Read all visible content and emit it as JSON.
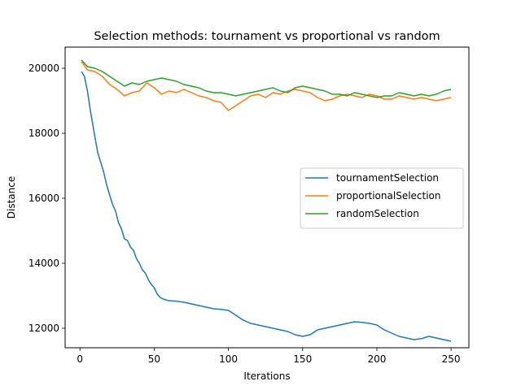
{
  "chart_data": {
    "type": "line",
    "title": "Selection methods: tournament vs proportional vs random",
    "xlabel": "Iterations",
    "ylabel": "Distance",
    "xlim": [
      -10,
      262
    ],
    "ylim": [
      11400,
      20650
    ],
    "xticks": [
      0,
      50,
      100,
      150,
      200,
      250
    ],
    "yticks": [
      12000,
      14000,
      16000,
      18000,
      20000
    ],
    "grid": false,
    "legend_position": "center-right",
    "series": [
      {
        "name": "tournamentSelection",
        "color": "#1f77b4",
        "x": [
          1,
          3,
          5,
          7,
          10,
          12,
          14,
          16,
          18,
          20,
          22,
          24,
          26,
          28,
          30,
          32,
          34,
          36,
          38,
          40,
          42,
          44,
          46,
          48,
          50,
          52,
          54,
          56,
          58,
          60,
          65,
          70,
          75,
          80,
          85,
          90,
          95,
          100,
          105,
          110,
          115,
          120,
          125,
          130,
          135,
          140,
          145,
          150,
          155,
          160,
          165,
          170,
          175,
          180,
          185,
          190,
          195,
          200,
          205,
          210,
          215,
          220,
          225,
          230,
          235,
          240,
          245,
          250
        ],
        "values": [
          19900,
          19750,
          19300,
          18700,
          17900,
          17400,
          17100,
          16800,
          16400,
          16100,
          15800,
          15600,
          15250,
          15050,
          14750,
          14700,
          14500,
          14400,
          14150,
          14000,
          13800,
          13700,
          13500,
          13350,
          13250,
          13050,
          12950,
          12900,
          12870,
          12850,
          12830,
          12800,
          12750,
          12700,
          12650,
          12600,
          12580,
          12550,
          12400,
          12250,
          12150,
          12100,
          12050,
          12000,
          11950,
          11900,
          11800,
          11750,
          11800,
          11950,
          12000,
          12050,
          12100,
          12150,
          12200,
          12180,
          12150,
          12100,
          11950,
          11850,
          11750,
          11700,
          11650,
          11680,
          11750,
          11700,
          11650,
          11600
        ]
      },
      {
        "name": "proportionalSelection",
        "color": "#ff7f0e",
        "x": [
          1,
          5,
          10,
          15,
          20,
          25,
          30,
          35,
          40,
          45,
          50,
          55,
          60,
          65,
          70,
          75,
          80,
          85,
          90,
          95,
          100,
          105,
          110,
          115,
          120,
          125,
          130,
          135,
          140,
          145,
          150,
          155,
          160,
          165,
          170,
          175,
          180,
          185,
          190,
          195,
          200,
          205,
          210,
          215,
          220,
          225,
          230,
          235,
          240,
          245,
          250
        ],
        "values": [
          20200,
          19950,
          19900,
          19750,
          19500,
          19350,
          19150,
          19250,
          19300,
          19550,
          19400,
          19200,
          19300,
          19250,
          19350,
          19250,
          19150,
          19100,
          19000,
          18950,
          18700,
          18850,
          19000,
          19150,
          19200,
          19100,
          19250,
          19200,
          19300,
          19350,
          19300,
          19250,
          19100,
          19000,
          19050,
          19150,
          19200,
          19150,
          19100,
          19200,
          19150,
          19050,
          19050,
          19150,
          19100,
          19050,
          19100,
          19050,
          19000,
          19050,
          19100
        ]
      },
      {
        "name": "randomSelection",
        "color": "#2ca02c",
        "x": [
          1,
          5,
          10,
          15,
          20,
          25,
          30,
          35,
          40,
          45,
          50,
          55,
          60,
          65,
          70,
          75,
          80,
          85,
          90,
          95,
          100,
          105,
          110,
          115,
          120,
          125,
          130,
          135,
          140,
          145,
          150,
          155,
          160,
          165,
          170,
          175,
          180,
          185,
          190,
          195,
          200,
          205,
          210,
          215,
          220,
          225,
          230,
          235,
          240,
          245,
          250
        ],
        "values": [
          20250,
          20050,
          20000,
          19900,
          19750,
          19600,
          19450,
          19550,
          19500,
          19600,
          19650,
          19700,
          19650,
          19600,
          19500,
          19450,
          19400,
          19300,
          19250,
          19250,
          19200,
          19150,
          19200,
          19250,
          19300,
          19350,
          19400,
          19300,
          19250,
          19400,
          19450,
          19400,
          19350,
          19300,
          19200,
          19200,
          19150,
          19250,
          19200,
          19150,
          19100,
          19150,
          19150,
          19250,
          19200,
          19150,
          19200,
          19150,
          19200,
          19300,
          19350
        ]
      }
    ]
  }
}
